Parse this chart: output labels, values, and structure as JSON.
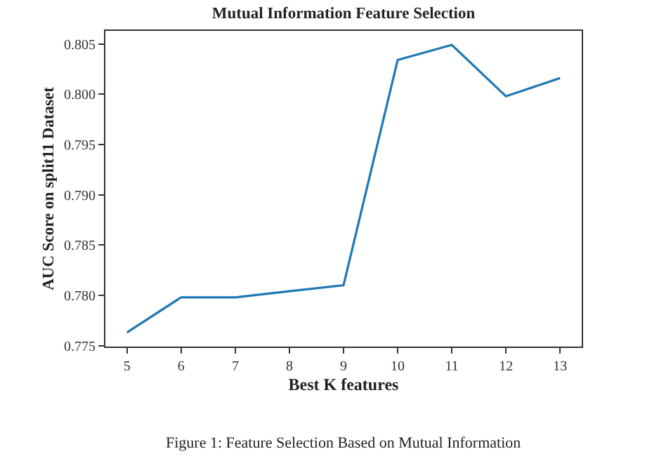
{
  "chart_data": {
    "type": "line",
    "title": "Mutual Information Feature Selection",
    "xlabel": "Best K features",
    "ylabel": "AUC Score on split11 Dataset",
    "x": [
      5,
      6,
      7,
      8,
      9,
      10,
      11,
      12,
      13
    ],
    "series": [
      {
        "color": "#1f77b4",
        "values": [
          0.7763,
          0.7798,
          0.7798,
          0.7804,
          0.781,
          0.8034,
          0.8049,
          0.7998,
          0.8016
        ]
      }
    ],
    "xlim": [
      4.6,
      13.4
    ],
    "ylim": [
      0.7749,
      0.8063
    ],
    "xticks": [
      5,
      6,
      7,
      8,
      9,
      10,
      11,
      12,
      13
    ],
    "yticks": [
      {
        "value": 0.775,
        "label": "0.775"
      },
      {
        "value": 0.78,
        "label": "0.780"
      },
      {
        "value": 0.785,
        "label": "0.785"
      },
      {
        "value": 0.79,
        "label": "0.790"
      },
      {
        "value": 0.795,
        "label": "0.795"
      },
      {
        "value": 0.8,
        "label": "0.800"
      },
      {
        "value": 0.805,
        "label": "0.805"
      }
    ],
    "marker": "none",
    "line_style": "solid",
    "annotations": [
      "Figure 1: Feature Selection Based on Mutual Information"
    ]
  }
}
